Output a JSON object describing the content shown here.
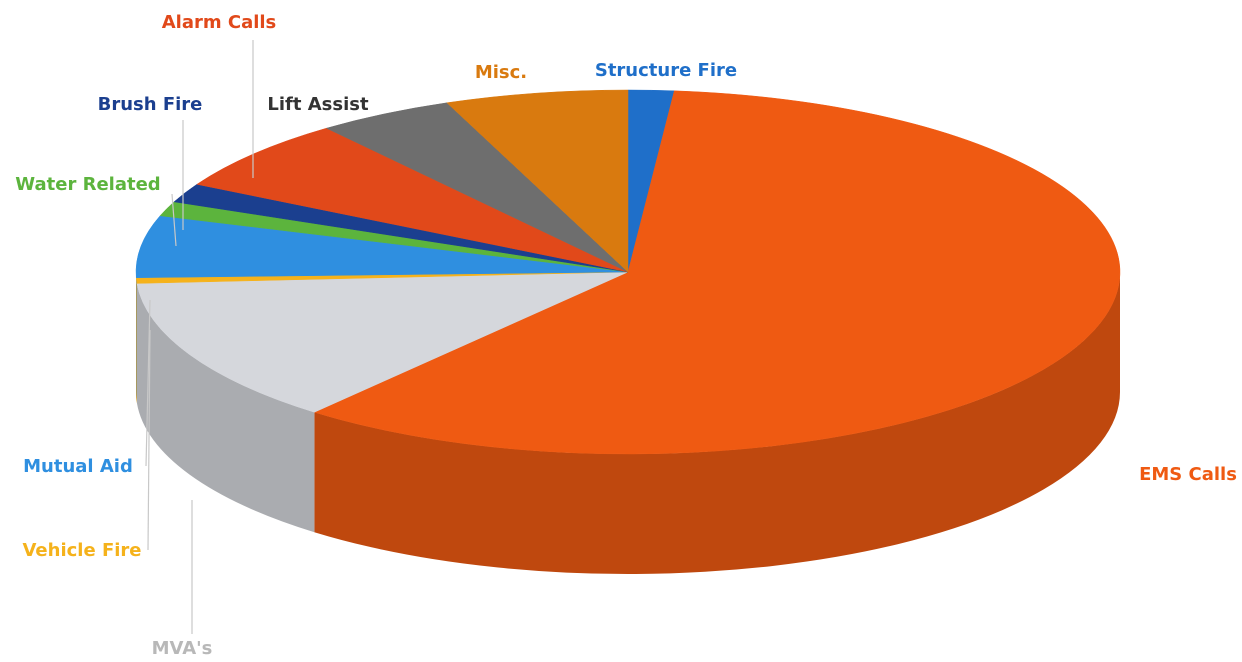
{
  "chart_data": {
    "type": "pie",
    "title": "",
    "start_angle_deg": -90,
    "slices": [
      {
        "label": "Structure Fire",
        "value": 1.5,
        "color": "#1f6fc9",
        "label_color": "#1f6fc9"
      },
      {
        "label": "EMS Calls",
        "value": 59.5,
        "color": "#ef5a12",
        "label_color": "#ef5a12"
      },
      {
        "label": "MVA's",
        "value": 13.0,
        "color": "#d5d7dc",
        "label_color": "#b8b8b8"
      },
      {
        "label": "Vehicle Fire",
        "value": 0.5,
        "color": "#f5b21b",
        "label_color": "#f5b21b"
      },
      {
        "label": "Mutual Aid",
        "value": 5.5,
        "color": "#2f8fe0",
        "label_color": "#2f8fe0"
      },
      {
        "label": "Water Related",
        "value": 1.3,
        "color": "#5cb43d",
        "label_color": "#5cb43d"
      },
      {
        "label": "Brush Fire",
        "value": 1.7,
        "color": "#1b3f8f",
        "label_color": "#1b3f8f"
      },
      {
        "label": "Alarm Calls",
        "value": 6.5,
        "color": "#e1491a",
        "label_color": "#e1491a"
      },
      {
        "label": "Lift Assist",
        "value": 4.5,
        "color": "#6e6e6e",
        "label_color": "#333333"
      },
      {
        "label": "Misc.",
        "value": 6.0,
        "color": "#d97a0f",
        "label_color": "#d97a0f"
      }
    ]
  }
}
